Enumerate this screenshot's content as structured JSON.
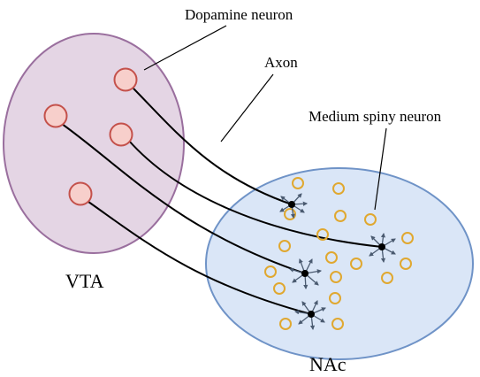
{
  "labels": {
    "dopamine_neuron": "Dopamine neuron",
    "axon": "Axon",
    "medium_spiny_neuron": "Medium spiny neuron",
    "vta": "VTA",
    "nac": "NAc"
  },
  "colors": {
    "vta_fill": "#e4d5e4",
    "vta_stroke": "#9a6f9e",
    "nac_fill": "#dae6f7",
    "nac_stroke": "#6f93c7",
    "dopamine_cell_fill": "#f7cfcb",
    "dopamine_cell_stroke": "#c4514b",
    "msn_stroke": "#e0a830",
    "arrow_color": "#4a5a70",
    "axon_color": "#000000"
  }
}
